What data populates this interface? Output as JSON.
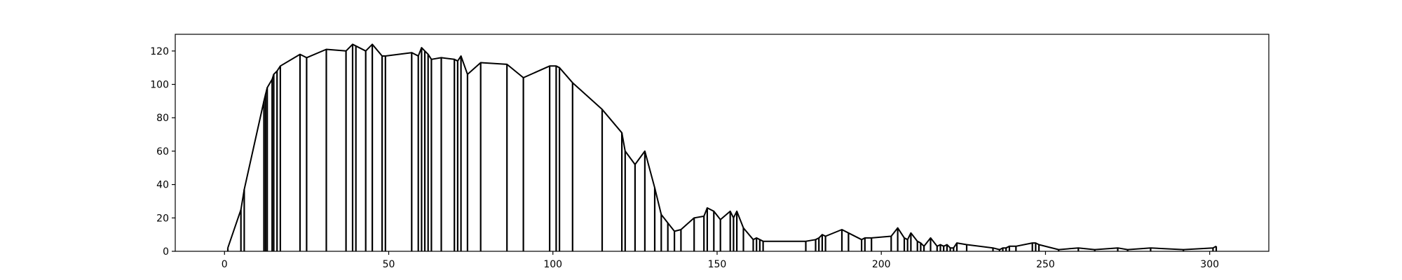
{
  "chart_data": {
    "type": "line",
    "title": "",
    "xlabel": "",
    "ylabel": "",
    "xlim": [
      -15,
      318
    ],
    "ylim": [
      0,
      130
    ],
    "xticks": [
      0,
      50,
      100,
      150,
      200,
      250,
      300
    ],
    "yticks": [
      0,
      20,
      40,
      60,
      80,
      100,
      120
    ],
    "grid": false,
    "legend": "none",
    "line_color": "#000000",
    "series": [
      {
        "x": [
          1,
          5,
          6,
          12,
          12.5,
          13,
          14.5,
          15,
          16,
          17,
          23,
          25,
          31,
          37,
          39,
          40,
          43,
          45,
          48,
          49,
          57,
          59,
          60,
          61,
          62,
          63,
          66,
          70,
          71,
          72,
          74,
          78,
          86,
          91,
          99,
          101,
          102,
          106,
          115,
          121,
          122,
          125,
          128,
          131,
          133,
          135,
          137,
          139,
          143,
          146,
          147,
          149,
          151,
          154,
          155,
          156,
          158,
          161,
          162,
          163,
          164,
          177,
          180,
          181,
          182,
          183,
          188,
          190,
          194,
          195,
          197,
          203,
          205,
          207,
          208,
          209,
          211,
          212,
          213,
          215,
          217,
          218,
          219,
          220,
          221,
          222,
          223,
          226,
          234,
          236,
          237,
          238,
          239,
          241,
          246,
          247,
          248,
          254,
          260,
          265,
          272,
          275,
          282,
          292,
          301,
          302
        ],
        "y": [
          2,
          25,
          37,
          90,
          94,
          98,
          103,
          106,
          108,
          111,
          118,
          116,
          121,
          120,
          124,
          123,
          120,
          124,
          117,
          117,
          119,
          117,
          122,
          120,
          118,
          115,
          116,
          115,
          114,
          117,
          106,
          113,
          112,
          104,
          111,
          111,
          110,
          101,
          85,
          71,
          60,
          52,
          60,
          38,
          22,
          17,
          12,
          13,
          20,
          21,
          26,
          24,
          19,
          24,
          20,
          24,
          14,
          7,
          8,
          7,
          6,
          6,
          7,
          8,
          10,
          9,
          13,
          11,
          7,
          8,
          8,
          9,
          14,
          8,
          7,
          11,
          6,
          5,
          3,
          8,
          3,
          4,
          3,
          4,
          2,
          2,
          5,
          4,
          2,
          1,
          2,
          2,
          3,
          3,
          5,
          5,
          4,
          1,
          2,
          1,
          2,
          1,
          2,
          1,
          2,
          3
        ]
      }
    ]
  }
}
